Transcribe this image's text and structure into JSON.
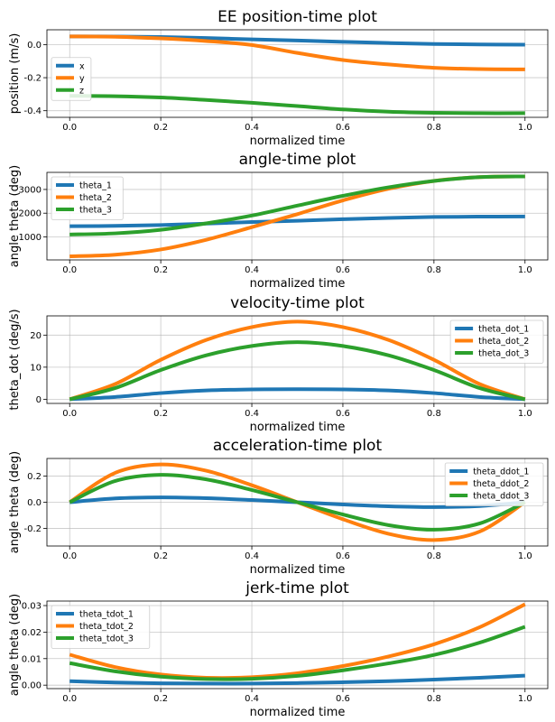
{
  "chart_data": [
    {
      "type": "line",
      "title": "EE position-time plot",
      "xlabel": "normalized time",
      "ylabel": "position (m/s)",
      "xlim": [
        -0.05,
        1.05
      ],
      "ylim": [
        -0.44,
        0.09
      ],
      "xticks": [
        0.0,
        0.2,
        0.4,
        0.6,
        0.8,
        1.0
      ],
      "yticks": [
        -0.4,
        -0.2,
        0.0
      ],
      "tick_format": 1,
      "grid": true,
      "legend_loc": "center-left",
      "series": [
        {
          "name": "x",
          "color": "#1f77b4",
          "x": [
            0,
            0.1,
            0.2,
            0.3,
            0.4,
            0.5,
            0.6,
            0.7,
            0.8,
            0.9,
            1.0
          ],
          "values": [
            0.05,
            0.049,
            0.046,
            0.04,
            0.032,
            0.025,
            0.017,
            0.01,
            0.004,
            0.001,
            0.0
          ]
        },
        {
          "name": "y",
          "color": "#ff7f0e",
          "x": [
            0,
            0.1,
            0.2,
            0.3,
            0.4,
            0.5,
            0.6,
            0.7,
            0.8,
            0.9,
            1.0
          ],
          "values": [
            0.05,
            0.048,
            0.038,
            0.022,
            -0.002,
            -0.05,
            -0.093,
            -0.12,
            -0.14,
            -0.148,
            -0.15
          ]
        },
        {
          "name": "z",
          "color": "#2ca02c",
          "x": [
            0,
            0.1,
            0.2,
            0.3,
            0.4,
            0.5,
            0.6,
            0.7,
            0.8,
            0.9,
            1.0
          ],
          "values": [
            -0.31,
            -0.312,
            -0.32,
            -0.335,
            -0.352,
            -0.372,
            -0.392,
            -0.406,
            -0.413,
            -0.415,
            -0.415
          ]
        }
      ]
    },
    {
      "type": "line",
      "title": "angle-time plot",
      "xlabel": "normalized time",
      "ylabel": "angle theta (deg)",
      "xlim": [
        -0.05,
        1.05
      ],
      "ylim": [
        30,
        3720
      ],
      "xticks": [
        0.0,
        0.2,
        0.4,
        0.6,
        0.8,
        1.0
      ],
      "yticks": [
        1000,
        2000,
        3000
      ],
      "tick_format": 0,
      "grid": true,
      "legend_loc": "upper-left",
      "series": [
        {
          "name": "theta_1",
          "color": "#1f77b4",
          "x": [
            0,
            0.1,
            0.2,
            0.3,
            0.4,
            0.5,
            0.6,
            0.7,
            0.8,
            0.9,
            1.0
          ],
          "values": [
            1450,
            1465,
            1500,
            1560,
            1630,
            1680,
            1745,
            1800,
            1840,
            1855,
            1860
          ]
        },
        {
          "name": "theta_2",
          "color": "#ff7f0e",
          "x": [
            0,
            0.1,
            0.2,
            0.3,
            0.4,
            0.5,
            0.6,
            0.7,
            0.8,
            0.9,
            1.0
          ],
          "values": [
            180,
            250,
            470,
            880,
            1410,
            1960,
            2540,
            3030,
            3360,
            3520,
            3550
          ]
        },
        {
          "name": "theta_3",
          "color": "#2ca02c",
          "x": [
            0,
            0.1,
            0.2,
            0.3,
            0.4,
            0.5,
            0.6,
            0.7,
            0.8,
            0.9,
            1.0
          ],
          "values": [
            1100,
            1150,
            1300,
            1570,
            1900,
            2320,
            2730,
            3090,
            3360,
            3520,
            3550
          ]
        }
      ]
    },
    {
      "type": "line",
      "title": "velocity-time plot",
      "xlabel": "normalized time",
      "ylabel": "theta_dot (deg/s)",
      "xlim": [
        -0.05,
        1.05
      ],
      "ylim": [
        -1.3,
        26.0
      ],
      "xticks": [
        0.0,
        0.2,
        0.4,
        0.6,
        0.8,
        1.0
      ],
      "yticks": [
        0,
        10,
        20
      ],
      "tick_format": 0,
      "grid": true,
      "legend_loc": "upper-right",
      "series": [
        {
          "name": "theta_dot_1",
          "color": "#1f77b4",
          "x": [
            0,
            0.1,
            0.2,
            0.3,
            0.4,
            0.5,
            0.6,
            0.7,
            0.8,
            0.9,
            1.0
          ],
          "values": [
            0,
            0.72,
            1.92,
            2.74,
            3.07,
            3.13,
            3.07,
            2.74,
            1.92,
            0.72,
            0
          ]
        },
        {
          "name": "theta_dot_2",
          "color": "#ff7f0e",
          "x": [
            0,
            0.1,
            0.2,
            0.3,
            0.4,
            0.5,
            0.6,
            0.7,
            0.8,
            0.9,
            1.0
          ],
          "values": [
            0,
            4.75,
            12.3,
            18.5,
            22.5,
            24.2,
            22.5,
            18.5,
            12.3,
            4.75,
            0
          ]
        },
        {
          "name": "theta_dot_3",
          "color": "#2ca02c",
          "x": [
            0,
            0.1,
            0.2,
            0.3,
            0.4,
            0.5,
            0.6,
            0.7,
            0.8,
            0.9,
            1.0
          ],
          "values": [
            0,
            3.5,
            9.1,
            13.7,
            16.6,
            17.8,
            16.6,
            13.7,
            9.1,
            3.5,
            0
          ]
        }
      ]
    },
    {
      "type": "line",
      "title": "acceleration-time plot",
      "xlabel": "normalized time",
      "ylabel": "angle theta (deg)",
      "xlim": [
        -0.05,
        1.05
      ],
      "ylim": [
        -0.335,
        0.335
      ],
      "xticks": [
        0.0,
        0.2,
        0.4,
        0.6,
        0.8,
        1.0
      ],
      "yticks": [
        -0.2,
        0.0,
        0.2
      ],
      "tick_format": 1,
      "grid": true,
      "legend_loc": "upper-right",
      "series": [
        {
          "name": "theta_ddot_1",
          "color": "#1f77b4",
          "x": [
            0,
            0.1,
            0.2,
            0.3,
            0.4,
            0.5,
            0.6,
            0.7,
            0.8,
            0.9,
            1.0
          ],
          "values": [
            0,
            0.029,
            0.037,
            0.031,
            0.017,
            0,
            -0.017,
            -0.031,
            -0.037,
            -0.029,
            0
          ]
        },
        {
          "name": "theta_ddot_2",
          "color": "#ff7f0e",
          "x": [
            0,
            0.1,
            0.2,
            0.3,
            0.4,
            0.5,
            0.6,
            0.7,
            0.8,
            0.9,
            1.0
          ],
          "values": [
            0,
            0.225,
            0.289,
            0.241,
            0.13,
            0,
            -0.13,
            -0.241,
            -0.289,
            -0.225,
            0
          ]
        },
        {
          "name": "theta_ddot_3",
          "color": "#2ca02c",
          "x": [
            0,
            0.1,
            0.2,
            0.3,
            0.4,
            0.5,
            0.6,
            0.7,
            0.8,
            0.9,
            1.0
          ],
          "values": [
            0,
            0.163,
            0.21,
            0.175,
            0.094,
            0,
            -0.094,
            -0.175,
            -0.21,
            -0.163,
            0
          ]
        }
      ]
    },
    {
      "type": "line",
      "title": "jerk-time plot",
      "xlabel": "normalized time",
      "ylabel": "angle theta (deg)",
      "xlim": [
        -0.05,
        1.05
      ],
      "ylim": [
        -0.0013,
        0.0317
      ],
      "xticks": [
        0.0,
        0.2,
        0.4,
        0.6,
        0.8,
        1.0
      ],
      "yticks": [
        0.0,
        0.01,
        0.02,
        0.03
      ],
      "tick_format": 2,
      "grid": true,
      "legend_loc": "upper-left",
      "series": [
        {
          "name": "theta_tdot_1",
          "color": "#1f77b4",
          "x": [
            0,
            0.1,
            0.2,
            0.3,
            0.4,
            0.5,
            0.6,
            0.7,
            0.8,
            0.9,
            1.0
          ],
          "values": [
            0.0015,
            0.001,
            0.0007,
            0.0006,
            0.0006,
            0.0008,
            0.0011,
            0.0015,
            0.0021,
            0.0028,
            0.0036
          ]
        },
        {
          "name": "theta_tdot_2",
          "color": "#ff7f0e",
          "x": [
            0,
            0.1,
            0.2,
            0.3,
            0.4,
            0.5,
            0.6,
            0.7,
            0.8,
            0.9,
            1.0
          ],
          "values": [
            0.0115,
            0.0068,
            0.004,
            0.0028,
            0.003,
            0.0045,
            0.0072,
            0.0108,
            0.0154,
            0.0218,
            0.0305
          ]
        },
        {
          "name": "theta_tdot_3",
          "color": "#2ca02c",
          "x": [
            0,
            0.1,
            0.2,
            0.3,
            0.4,
            0.5,
            0.6,
            0.7,
            0.8,
            0.9,
            1.0
          ],
          "values": [
            0.0083,
            0.0052,
            0.0032,
            0.0023,
            0.0024,
            0.0035,
            0.0056,
            0.0082,
            0.0114,
            0.016,
            0.022
          ]
        }
      ]
    }
  ]
}
